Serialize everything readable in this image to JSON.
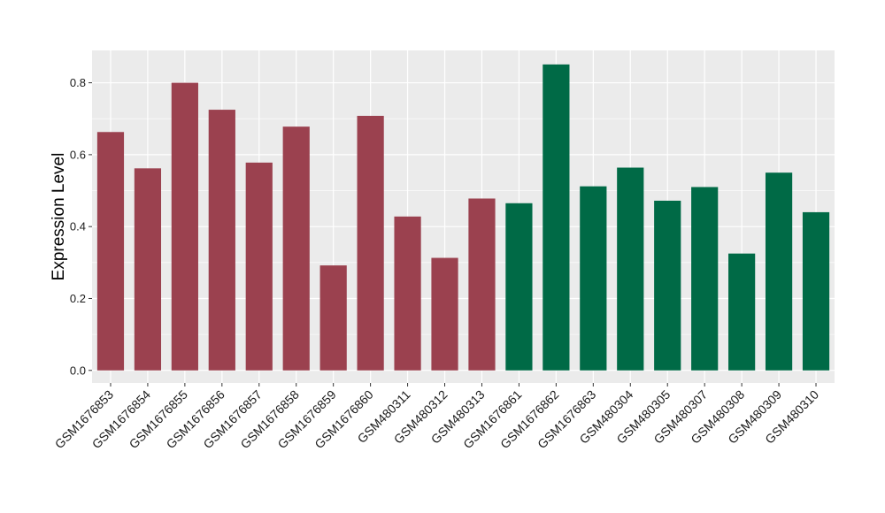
{
  "chart_data": {
    "type": "bar",
    "title": "",
    "xlabel": "",
    "ylabel": "Expression Level",
    "ylim": [
      -0.035,
      0.89
    ],
    "yticks": [
      "0.0",
      "0.2",
      "0.4",
      "0.6",
      "0.8"
    ],
    "grid": true,
    "categories": [
      "GSM1676853",
      "GSM1676854",
      "GSM1676855",
      "GSM1676856",
      "GSM1676857",
      "GSM1676858",
      "GSM1676859",
      "GSM1676860",
      "GSM480311",
      "GSM480312",
      "GSM480313",
      "GSM1676861",
      "GSM1676862",
      "GSM1676863",
      "GSM480304",
      "GSM480305",
      "GSM480307",
      "GSM480308",
      "GSM480309",
      "GSM480310"
    ],
    "values": [
      0.663,
      0.562,
      0.8,
      0.725,
      0.578,
      0.678,
      0.292,
      0.708,
      0.428,
      0.313,
      0.478,
      0.465,
      0.851,
      0.512,
      0.564,
      0.472,
      0.51,
      0.325,
      0.55,
      0.44
    ],
    "group_colors": [
      "#9b414f",
      "#9b414f",
      "#9b414f",
      "#9b414f",
      "#9b414f",
      "#9b414f",
      "#9b414f",
      "#9b414f",
      "#9b414f",
      "#9b414f",
      "#9b414f",
      "#006a46",
      "#006a46",
      "#006a46",
      "#006a46",
      "#006a46",
      "#006a46",
      "#006a46",
      "#006a46",
      "#006a46"
    ],
    "panel_color": "#ebebeb",
    "grid_color": "#ffffff"
  }
}
